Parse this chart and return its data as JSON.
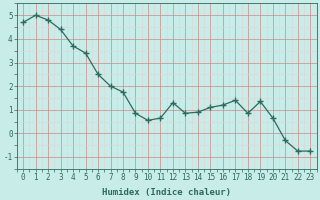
{
  "x": [
    0,
    1,
    2,
    3,
    4,
    5,
    6,
    7,
    8,
    9,
    10,
    11,
    12,
    13,
    14,
    15,
    16,
    17,
    18,
    19,
    20,
    21,
    22,
    23
  ],
  "y": [
    4.7,
    5.0,
    4.8,
    4.4,
    3.7,
    3.4,
    2.5,
    2.0,
    1.75,
    0.85,
    0.55,
    0.65,
    1.3,
    0.85,
    0.9,
    1.1,
    1.2,
    1.4,
    0.85,
    1.35,
    0.65,
    -0.3,
    -0.75,
    -0.75
  ],
  "line_color": "#2d6b5e",
  "marker": "+",
  "markersize": 4,
  "linewidth": 0.9,
  "bg_color": "#c8ece8",
  "grid_major_color": "#cc8888",
  "grid_minor_color": "#e0d4d4",
  "xlabel": "Humidex (Indice chaleur)",
  "xlabel_fontsize": 6.5,
  "ylabel_ticks": [
    -1,
    0,
    1,
    2,
    3,
    4,
    5
  ],
  "xtick_labels": [
    "0",
    "1",
    "2",
    "3",
    "4",
    "5",
    "6",
    "7",
    "8",
    "9",
    "10",
    "11",
    "12",
    "13",
    "14",
    "15",
    "16",
    "17",
    "18",
    "19",
    "20",
    "21",
    "22",
    "23"
  ],
  "xlim": [
    -0.5,
    23.5
  ],
  "ylim": [
    -1.5,
    5.5
  ],
  "tick_fontsize": 5.5,
  "figsize": [
    3.2,
    2.0
  ],
  "dpi": 100
}
